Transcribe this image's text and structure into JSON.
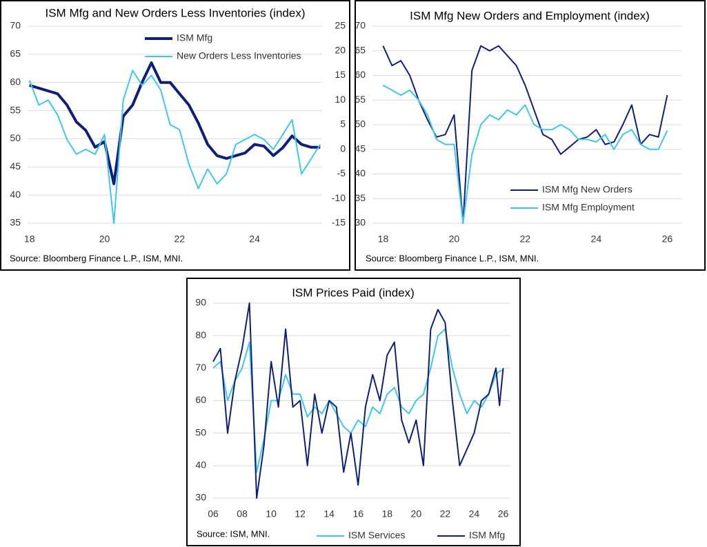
{
  "chart_data": [
    {
      "type": "line",
      "title": "ISM Mfg and New Orders Less Inventories (index)",
      "source": "Source: Bloomberg Finance L.P., ISM, MNI.",
      "legend": "upper right",
      "grid": true,
      "x": [
        18,
        18.25,
        18.5,
        18.75,
        19,
        19.25,
        19.5,
        19.75,
        20,
        20.25,
        20.5,
        20.75,
        21,
        21.25,
        21.5,
        21.75,
        22,
        22.25,
        22.5,
        22.75,
        23,
        23.25,
        23.5,
        23.75,
        24,
        24.25,
        24.5,
        24.75,
        25,
        25.25,
        25.5,
        25.75
      ],
      "xlim": [
        17.95,
        25.8
      ],
      "xticks": [
        18,
        20,
        22,
        24
      ],
      "ylim": [
        35,
        70
      ],
      "yticks": [
        35,
        40,
        45,
        50,
        55,
        60,
        65,
        70
      ],
      "y2lim": [
        -15,
        25
      ],
      "y2ticks": [
        -15,
        -10,
        -5,
        0,
        5,
        10,
        15,
        20,
        25
      ],
      "series": [
        {
          "name": "ISM Mfg",
          "color": "#0d1f7a",
          "width": 4,
          "values": [
            59.5,
            59,
            58.5,
            58,
            56,
            53,
            51.5,
            48.5,
            49.5,
            42,
            54,
            56,
            60,
            63.5,
            60,
            60,
            58,
            56,
            52.8,
            49,
            47,
            46.5,
            47,
            47.5,
            49,
            48.7,
            47,
            48.4,
            50.5,
            49,
            48.5,
            48.5
          ]
        },
        {
          "name": "New Orders Less Inventories",
          "color": "#3cc8ea",
          "width": 2,
          "axis": "y2",
          "values": [
            14,
            9,
            10,
            7,
            2,
            -1,
            0,
            -1,
            3,
            -15,
            10,
            16,
            13,
            15,
            12,
            5,
            4,
            -3,
            -8,
            -4,
            -7,
            -5,
            1,
            2,
            3,
            2,
            0,
            3,
            6,
            -5,
            -2,
            1
          ]
        }
      ]
    },
    {
      "type": "line",
      "title": "ISM Mfg New Orders and Employment (index)",
      "source": "Source: Bloomberg Finance L.P., ISM, MNI.",
      "legend": "lower right",
      "grid": true,
      "x": [
        18,
        18.25,
        18.5,
        18.75,
        19,
        19.25,
        19.5,
        19.75,
        20,
        20.25,
        20.5,
        20.75,
        21,
        21.25,
        21.5,
        21.75,
        22,
        22.25,
        22.5,
        22.75,
        23,
        23.25,
        23.5,
        23.75,
        24,
        24.25,
        24.5,
        24.75,
        25,
        25.25,
        25.5,
        25.75,
        26
      ],
      "xlim": [
        17.7,
        26.4
      ],
      "xticks": [
        18,
        20,
        22,
        24,
        26
      ],
      "ylim": [
        30,
        70
      ],
      "yticks": [
        30,
        35,
        40,
        45,
        50,
        55,
        60,
        65,
        70
      ],
      "series": [
        {
          "name": "ISM Mfg New Orders",
          "color": "#0d1f7a",
          "width": 2,
          "values": [
            66,
            62,
            63,
            60,
            55,
            51,
            47.5,
            48,
            52,
            30,
            61,
            66,
            65,
            66,
            64,
            62,
            58,
            53,
            48,
            47,
            44,
            45.5,
            47,
            47.5,
            49,
            46,
            46.5,
            50,
            54,
            46,
            48,
            47.5,
            56
          ]
        },
        {
          "name": "ISM Mfg Employment",
          "color": "#3cc8ea",
          "width": 2,
          "values": [
            58,
            57,
            56,
            57,
            55,
            52,
            47,
            46,
            46,
            30,
            44,
            50,
            52,
            51,
            53,
            52,
            54,
            50,
            49,
            49,
            50,
            49,
            47,
            47,
            46.5,
            48,
            45,
            48,
            49,
            46,
            45,
            45,
            48.8
          ]
        }
      ]
    },
    {
      "type": "line",
      "title": "ISM Prices Paid (index)",
      "source": "Source: ISM, MNI.",
      "legend": "bottom",
      "grid": true,
      "x": [
        6,
        6.5,
        7,
        7.5,
        8,
        8.5,
        9,
        9.5,
        10,
        10.5,
        11,
        11.5,
        12,
        12.5,
        13,
        13.5,
        14,
        14.5,
        15,
        15.5,
        16,
        16.5,
        17,
        17.5,
        18,
        18.5,
        19,
        19.5,
        20,
        20.5,
        21,
        21.5,
        22,
        22.5,
        23,
        23.5,
        24,
        24.5,
        25,
        25.5,
        25.75,
        26
      ],
      "xlim": [
        6,
        26.5
      ],
      "xticks": [
        {
          "value": 6,
          "label": "06"
        },
        {
          "value": 8,
          "label": "08"
        },
        10,
        12,
        14,
        16,
        18,
        20,
        22,
        24,
        26
      ],
      "ylim": [
        30,
        90
      ],
      "yticks": [
        30,
        40,
        50,
        60,
        70,
        80,
        90
      ],
      "series": [
        {
          "name": "ISM Services",
          "color": "#3cc8ea",
          "width": 2,
          "values": [
            70,
            72,
            60,
            66,
            70,
            78,
            38,
            48,
            60,
            60,
            68,
            62,
            62,
            55,
            58,
            56,
            60,
            56,
            52,
            50,
            54,
            52,
            58,
            56,
            62,
            64,
            58,
            56,
            60,
            62,
            70,
            80,
            82,
            70,
            62,
            56,
            60,
            58,
            62,
            68,
            69,
            69.5
          ]
        },
        {
          "name": "ISM Mfg",
          "color": "#0d1f7a",
          "width": 2,
          "values": [
            72,
            76,
            50,
            66,
            76,
            90,
            30,
            46,
            72,
            58,
            82,
            58,
            60,
            40,
            62,
            50,
            60,
            58,
            38,
            50,
            34,
            58,
            68,
            60,
            74,
            78,
            54,
            47,
            54,
            40,
            82,
            88,
            84,
            60,
            40,
            45,
            50,
            60,
            62,
            70,
            58.5,
            70
          ]
        }
      ]
    }
  ]
}
